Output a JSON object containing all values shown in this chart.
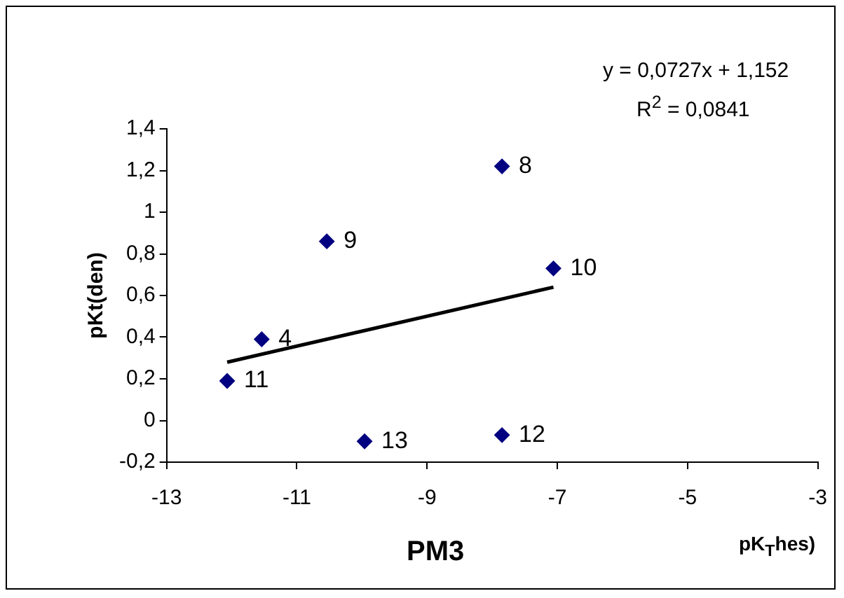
{
  "chart_data": {
    "type": "scatter",
    "title": "PM3",
    "xlabel": "pK$_{T}$hes)",
    "ylabel": "pKt(den)",
    "annotations": [
      "y = 0,0727x + 1,152",
      "R$^{2}$ = 0,0841",
      {
        "text": "8",
        "x": -7.85,
        "y": 1.22
      },
      {
        "text": "9",
        "x": -10.54,
        "y": 0.86
      },
      {
        "text": "10",
        "x": -7.06,
        "y": 0.73
      },
      {
        "text": "4",
        "x": -11.54,
        "y": 0.39
      },
      {
        "text": "11",
        "x": -12.07,
        "y": 0.19
      },
      {
        "text": "13",
        "x": -9.96,
        "y": -0.1
      },
      {
        "text": "12",
        "x": -7.85,
        "y": -0.07
      }
    ],
    "xlim": [
      -13,
      -3
    ],
    "xticks": [
      -13,
      -11,
      -9,
      -7,
      -5,
      -3
    ],
    "ylim": [
      -0.2,
      1.4
    ],
    "yticks": [
      {
        "value": -0.2,
        "label": "-0,2"
      },
      0,
      {
        "value": 0.2,
        "label": "0,2"
      },
      {
        "value": 0.4,
        "label": "0,4"
      },
      {
        "value": 0.6,
        "label": "0,6"
      },
      {
        "value": 0.8,
        "label": "0,8"
      },
      1,
      {
        "value": 1.2,
        "label": "1,2"
      },
      {
        "value": 1.4,
        "label": "1,4"
      }
    ],
    "grid": false,
    "legend": false,
    "series": [
      {
        "color": "#000080",
        "marker": "diamond",
        "x": [
          -7.85,
          -10.54,
          -7.06,
          -11.54,
          -12.07,
          -9.96,
          -7.85
        ],
        "values": [
          1.22,
          0.86,
          0.73,
          0.39,
          0.19,
          -0.1,
          -0.07
        ]
      },
      {
        "type": "line",
        "color": "#000000",
        "marker": "none",
        "x": [
          -12.07,
          -7.06
        ],
        "values": [
          0.28,
          0.64
        ],
        "line_style": "solid"
      }
    ]
  }
}
